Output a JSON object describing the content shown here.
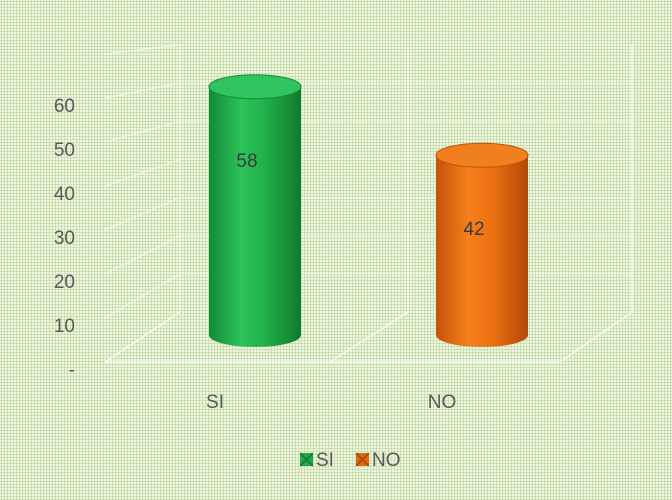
{
  "chart_data": {
    "type": "bar",
    "categories": [
      "SI",
      "NO"
    ],
    "values": [
      58,
      42
    ],
    "data_labels": [
      "58",
      "42"
    ],
    "y_ticks": [
      "-",
      "10",
      "20",
      "30",
      "40",
      "50",
      "60"
    ],
    "ylim": [
      0,
      70
    ],
    "grid": true,
    "legend": {
      "position": "bottom",
      "entries": [
        {
          "label": "SI",
          "color": "#1fa84a"
        },
        {
          "label": "NO",
          "color": "#e0660f"
        }
      ]
    },
    "colors": [
      "#1fa84a",
      "#e0660f"
    ],
    "style": "3d-cylinder"
  }
}
